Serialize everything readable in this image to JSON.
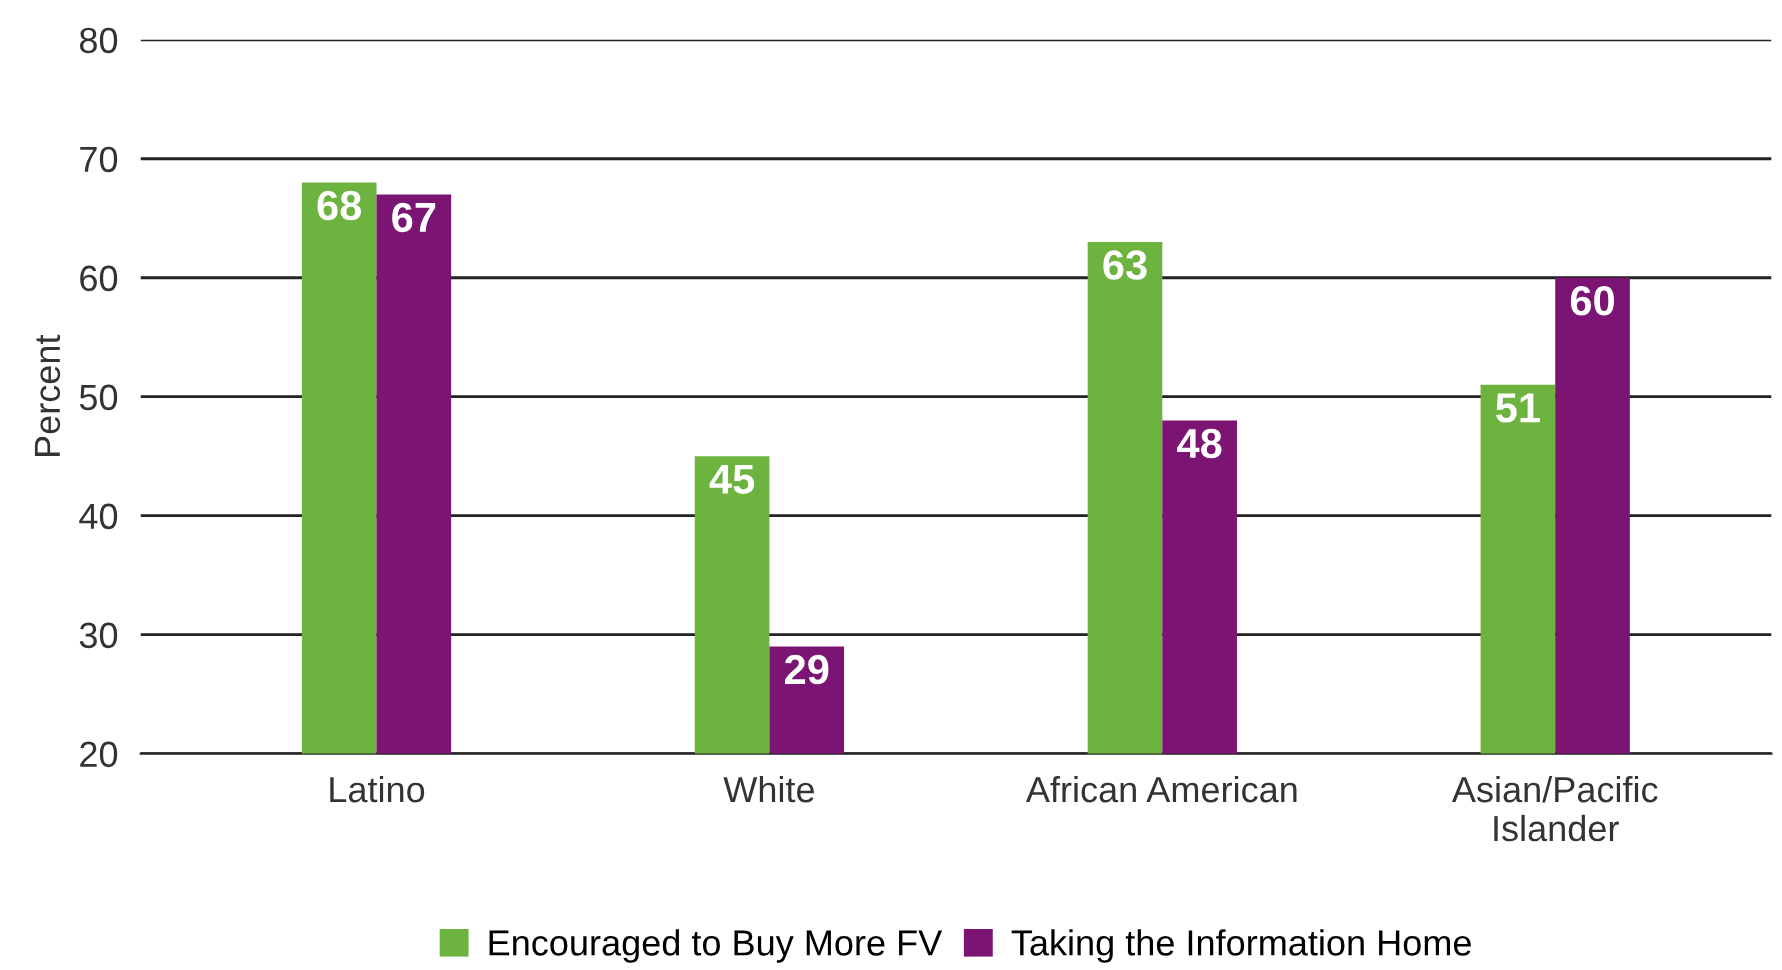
{
  "chart_data": {
    "type": "bar",
    "ylabel": "Percent",
    "categories": [
      "Latino",
      "White",
      "African American",
      "Asian/Pacific\nIslander"
    ],
    "series": [
      {
        "name": "Encouraged to Buy More FV",
        "color": "#6db33f",
        "values": [
          68,
          45,
          63,
          51
        ]
      },
      {
        "name": "Taking the Information Home",
        "color": "#7b1473",
        "values": [
          67,
          29,
          48,
          60
        ]
      }
    ],
    "ylim": [
      20,
      80
    ],
    "yticks": [
      20,
      30,
      40,
      50,
      60,
      70,
      80
    ],
    "grid": "y",
    "legend": "bottom",
    "data_labels": true
  }
}
